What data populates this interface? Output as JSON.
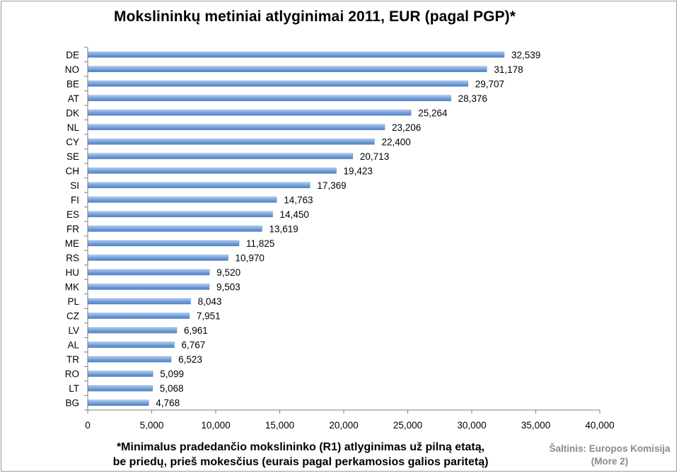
{
  "chart_data": {
    "type": "bar",
    "orientation": "horizontal",
    "title": "Mokslininkų metiniai atlyginimai 2011, EUR (pagal PGP)*",
    "categories": [
      "DE",
      "NO",
      "BE",
      "AT",
      "DK",
      "NL",
      "CY",
      "SE",
      "CH",
      "SI",
      "FI",
      "ES",
      "FR",
      "ME",
      "RS",
      "HU",
      "MK",
      "PL",
      "CZ",
      "LV",
      "AL",
      "TR",
      "RO",
      "LT",
      "BG"
    ],
    "values": [
      32539,
      31178,
      29707,
      28376,
      25264,
      23206,
      22400,
      20713,
      19423,
      17369,
      14763,
      14450,
      13619,
      11825,
      10970,
      9520,
      9503,
      8043,
      7951,
      6961,
      6767,
      6523,
      5099,
      5068,
      4768
    ],
    "value_labels": [
      "32,539",
      "31,178",
      "29,707",
      "28,376",
      "25,264",
      "23,206",
      "22,400",
      "20,713",
      "19,423",
      "17,369",
      "14,763",
      "14,450",
      "13,619",
      "11,825",
      "10,970",
      "9,520",
      "9,503",
      "8,043",
      "7,951",
      "6,961",
      "6,767",
      "6,523",
      "5,099",
      "5,068",
      "4,768"
    ],
    "xlim": [
      0,
      40000
    ],
    "xticks": [
      0,
      5000,
      10000,
      15000,
      20000,
      25000,
      30000,
      35000,
      40000
    ],
    "xtick_labels": [
      "0",
      "5,000",
      "10,000",
      "15,000",
      "20,000",
      "25,000",
      "30,000",
      "35,000",
      "40,000"
    ],
    "grid": false,
    "legend": "none",
    "bar_color": "#79a6dc"
  },
  "footnote": {
    "line1": "*Minimalus pradedančio mokslininko (R1) atlyginimas už pilną etatą,",
    "line2": "be priedų, prieš mokesčius (eurais pagal perkamosios galios paritetą)"
  },
  "source": {
    "line1": "Šaltinis: Europos Komisija",
    "line2": "(More 2)"
  }
}
